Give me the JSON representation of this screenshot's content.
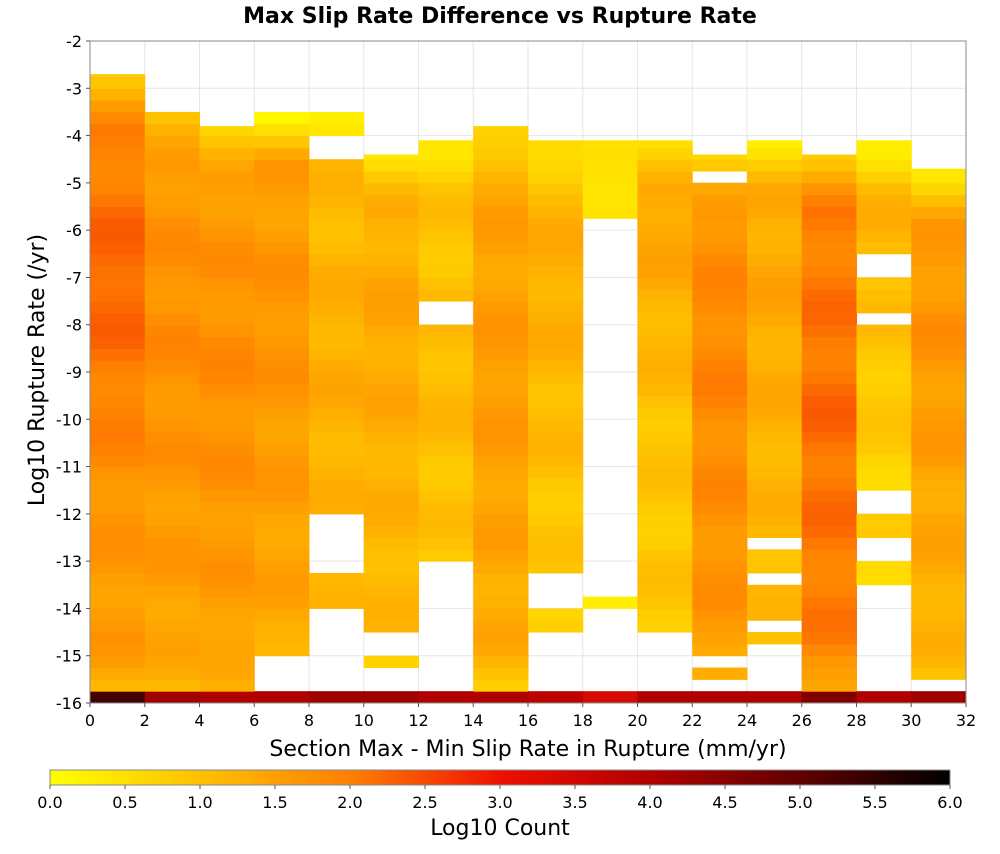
{
  "chart_data": {
    "type": "heatmap",
    "title": "Max Slip Rate Difference vs Rupture Rate",
    "xlabel": "Section Max - Min Slip Rate in Rupture (mm/yr)",
    "ylabel": "Log10 Rupture Rate (/yr)",
    "xlim": [
      0,
      32
    ],
    "ylim": [
      -16,
      -2
    ],
    "x_ticks": [
      0,
      2,
      4,
      6,
      8,
      10,
      12,
      14,
      16,
      18,
      20,
      22,
      24,
      26,
      28,
      30,
      32
    ],
    "y_ticks": [
      -2,
      -3,
      -4,
      -5,
      -6,
      -7,
      -8,
      -9,
      -10,
      -11,
      -12,
      -13,
      -14,
      -15,
      -16
    ],
    "grid": true,
    "x_bin_width": 2,
    "y_bin_height": 0.25,
    "colorbar": {
      "label": "Log10 Count",
      "range": [
        0,
        6
      ],
      "ticks": [
        "0.0",
        "0.5",
        "1.0",
        "1.5",
        "2.0",
        "2.5",
        "3.0",
        "3.5",
        "4.0",
        "4.5",
        "5.0",
        "5.5",
        "6.0"
      ],
      "stops": [
        {
          "v": 0.0,
          "color": "#ffff00"
        },
        {
          "v": 1.0,
          "color": "#ffc000"
        },
        {
          "v": 2.0,
          "color": "#ff8000"
        },
        {
          "v": 3.0,
          "color": "#ee1000"
        },
        {
          "v": 4.0,
          "color": "#b00000"
        },
        {
          "v": 5.0,
          "color": "#600000"
        },
        {
          "v": 6.0,
          "color": "#000000"
        }
      ]
    },
    "columns": [
      {
        "x": 0,
        "ymin": -16,
        "ymax": -2.7,
        "base": 1.8,
        "peak": 2.3,
        "peak_y": -7,
        "edge": 1.0,
        "bottom_row": 5.3,
        "gaps": []
      },
      {
        "x": 2,
        "ymin": -16,
        "ymax": -3.5,
        "base": 1.6,
        "peak": 1.8,
        "peak_y": -8,
        "edge": 0.9,
        "bottom_row": 4.2,
        "gaps": []
      },
      {
        "x": 4,
        "ymin": -16,
        "ymax": -3.8,
        "base": 1.6,
        "peak": 1.8,
        "peak_y": -9,
        "edge": 0.6,
        "bottom_row": 4.0,
        "gaps": []
      },
      {
        "x": 6,
        "ymin": -16,
        "ymax": -3.5,
        "base": 1.5,
        "peak": 1.7,
        "peak_y": -8,
        "edge": 0.3,
        "bottom_row": 4.0,
        "gaps": [
          [
            -15.7,
            -15.0
          ]
        ]
      },
      {
        "x": 8,
        "ymin": -16,
        "ymax": -3.5,
        "base": 1.1,
        "peak": 1.3,
        "peak_y": -9,
        "edge": 0.4,
        "bottom_row": 4.2,
        "gaps": [
          [
            -13.2,
            -11.9
          ],
          [
            -15.7,
            -14.1
          ],
          [
            -4.4,
            -3.9
          ]
        ]
      },
      {
        "x": 10,
        "ymin": -16,
        "ymax": -4.4,
        "base": 1.2,
        "peak": 1.4,
        "peak_y": -8,
        "edge": 0.5,
        "bottom_row": 4.2,
        "gaps": [
          [
            -15.7,
            -15.3
          ],
          [
            -15.0,
            -14.5
          ]
        ]
      },
      {
        "x": 12,
        "ymin": -16,
        "ymax": -4.1,
        "base": 0.9,
        "peak": 1.1,
        "peak_y": -9,
        "edge": 0.5,
        "bottom_row": 4.0,
        "gaps": [
          [
            -15.7,
            -13.0
          ],
          [
            -7.9,
            -7.6
          ]
        ]
      },
      {
        "x": 14,
        "ymin": -16,
        "ymax": -3.8,
        "base": 1.4,
        "peak": 1.6,
        "peak_y": -9,
        "edge": 0.6,
        "bottom_row": 4.0,
        "gaps": []
      },
      {
        "x": 16,
        "ymin": -16,
        "ymax": -4.1,
        "base": 1.0,
        "peak": 1.3,
        "peak_y": -7,
        "edge": 0.4,
        "bottom_row": 3.8,
        "gaps": [
          [
            -15.7,
            -14.4
          ],
          [
            -13.9,
            -13.3
          ]
        ]
      },
      {
        "x": 18,
        "ymin": -16,
        "ymax": -4.1,
        "base": 0.5,
        "peak": 0.6,
        "peak_y": -5,
        "edge": 0.3,
        "bottom_row": 3.4,
        "gaps": [
          [
            -15.7,
            -14.1
          ],
          [
            -13.8,
            -5.8
          ],
          [
            -4.6,
            -4.4
          ]
        ]
      },
      {
        "x": 20,
        "ymin": -16,
        "ymax": -4.1,
        "base": 1.1,
        "peak": 1.5,
        "peak_y": -5,
        "edge": 0.4,
        "bottom_row": 4.0,
        "gaps": [
          [
            -15.7,
            -14.4
          ]
        ]
      },
      {
        "x": 22,
        "ymin": -16,
        "ymax": -4.4,
        "base": 1.7,
        "peak": 1.9,
        "peak_y": -9,
        "edge": 0.6,
        "bottom_row": 4.0,
        "gaps": [
          [
            -15.7,
            -15.5
          ],
          [
            -15.2,
            -14.9
          ],
          [
            -4.9,
            -4.7
          ]
        ]
      },
      {
        "x": 24,
        "ymin": -16,
        "ymax": -4.1,
        "base": 1.2,
        "peak": 1.4,
        "peak_y": -7,
        "edge": 0.4,
        "bottom_row": 4.0,
        "gaps": [
          [
            -15.7,
            -14.8
          ],
          [
            -14.5,
            -14.3
          ],
          [
            -13.6,
            -13.2
          ],
          [
            -12.8,
            -12.6
          ]
        ]
      },
      {
        "x": 26,
        "ymin": -16,
        "ymax": -4.4,
        "base": 2.0,
        "peak": 2.2,
        "peak_y": -10,
        "edge": 1.0,
        "bottom_row": 4.6,
        "gaps": []
      },
      {
        "x": 28,
        "ymin": -16,
        "ymax": -4.1,
        "base": 0.9,
        "peak": 1.2,
        "peak_y": -5,
        "edge": 0.3,
        "bottom_row": 4.0,
        "gaps": [
          [
            -15.7,
            -13.6
          ],
          [
            -12.9,
            -12.4
          ],
          [
            -12.1,
            -11.6
          ],
          [
            -8.0,
            -7.8
          ],
          [
            -7.1,
            -6.4
          ]
        ]
      },
      {
        "x": 30,
        "ymin": -16,
        "ymax": -4.7,
        "base": 1.4,
        "peak": 1.7,
        "peak_y": -8,
        "edge": 0.5,
        "bottom_row": 4.2,
        "gaps": [
          [
            -15.7,
            -15.5
          ]
        ]
      }
    ]
  }
}
